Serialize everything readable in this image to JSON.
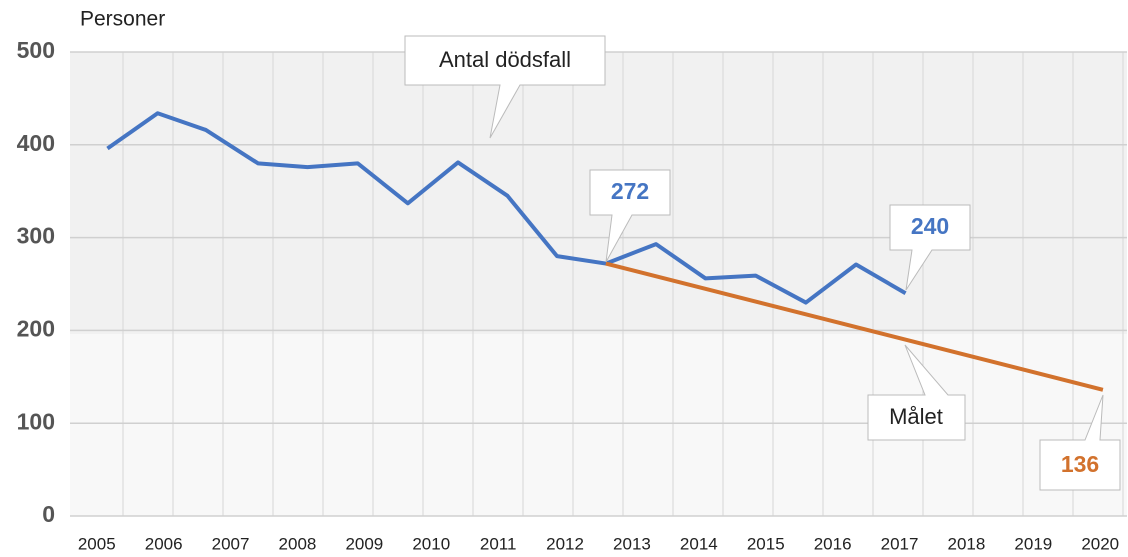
{
  "chart_data": {
    "type": "line",
    "y_label": "Personer",
    "xlim": [
      2004.6,
      2020.4
    ],
    "xticks": [
      2005,
      2006,
      2007,
      2008,
      2009,
      2010,
      2011,
      2012,
      2013,
      2014,
      2015,
      2016,
      2017,
      2018,
      2019,
      2020
    ],
    "ylim": [
      0,
      500
    ],
    "yticks": [
      0,
      100,
      200,
      300,
      400,
      500
    ],
    "grid": true,
    "series": [
      {
        "name": "Antal dödsfall",
        "color": "#4575c3",
        "x": [
          2005.16,
          2005.91,
          2006.63,
          2007.41,
          2008.15,
          2008.9,
          2009.65,
          2010.4,
          2011.14,
          2011.88,
          2012.61,
          2013.36,
          2014.1,
          2014.85,
          2015.6,
          2016.35,
          2017.09
        ],
        "values": [
          396,
          434,
          416,
          380,
          376,
          380,
          337,
          381,
          345,
          280,
          272,
          293,
          256,
          259,
          230,
          271,
          240
        ]
      },
      {
        "name": "Målet",
        "color": "#d2722d",
        "x": [
          2012.61,
          2020.04
        ],
        "values": [
          272,
          136
        ]
      }
    ]
  }
}
